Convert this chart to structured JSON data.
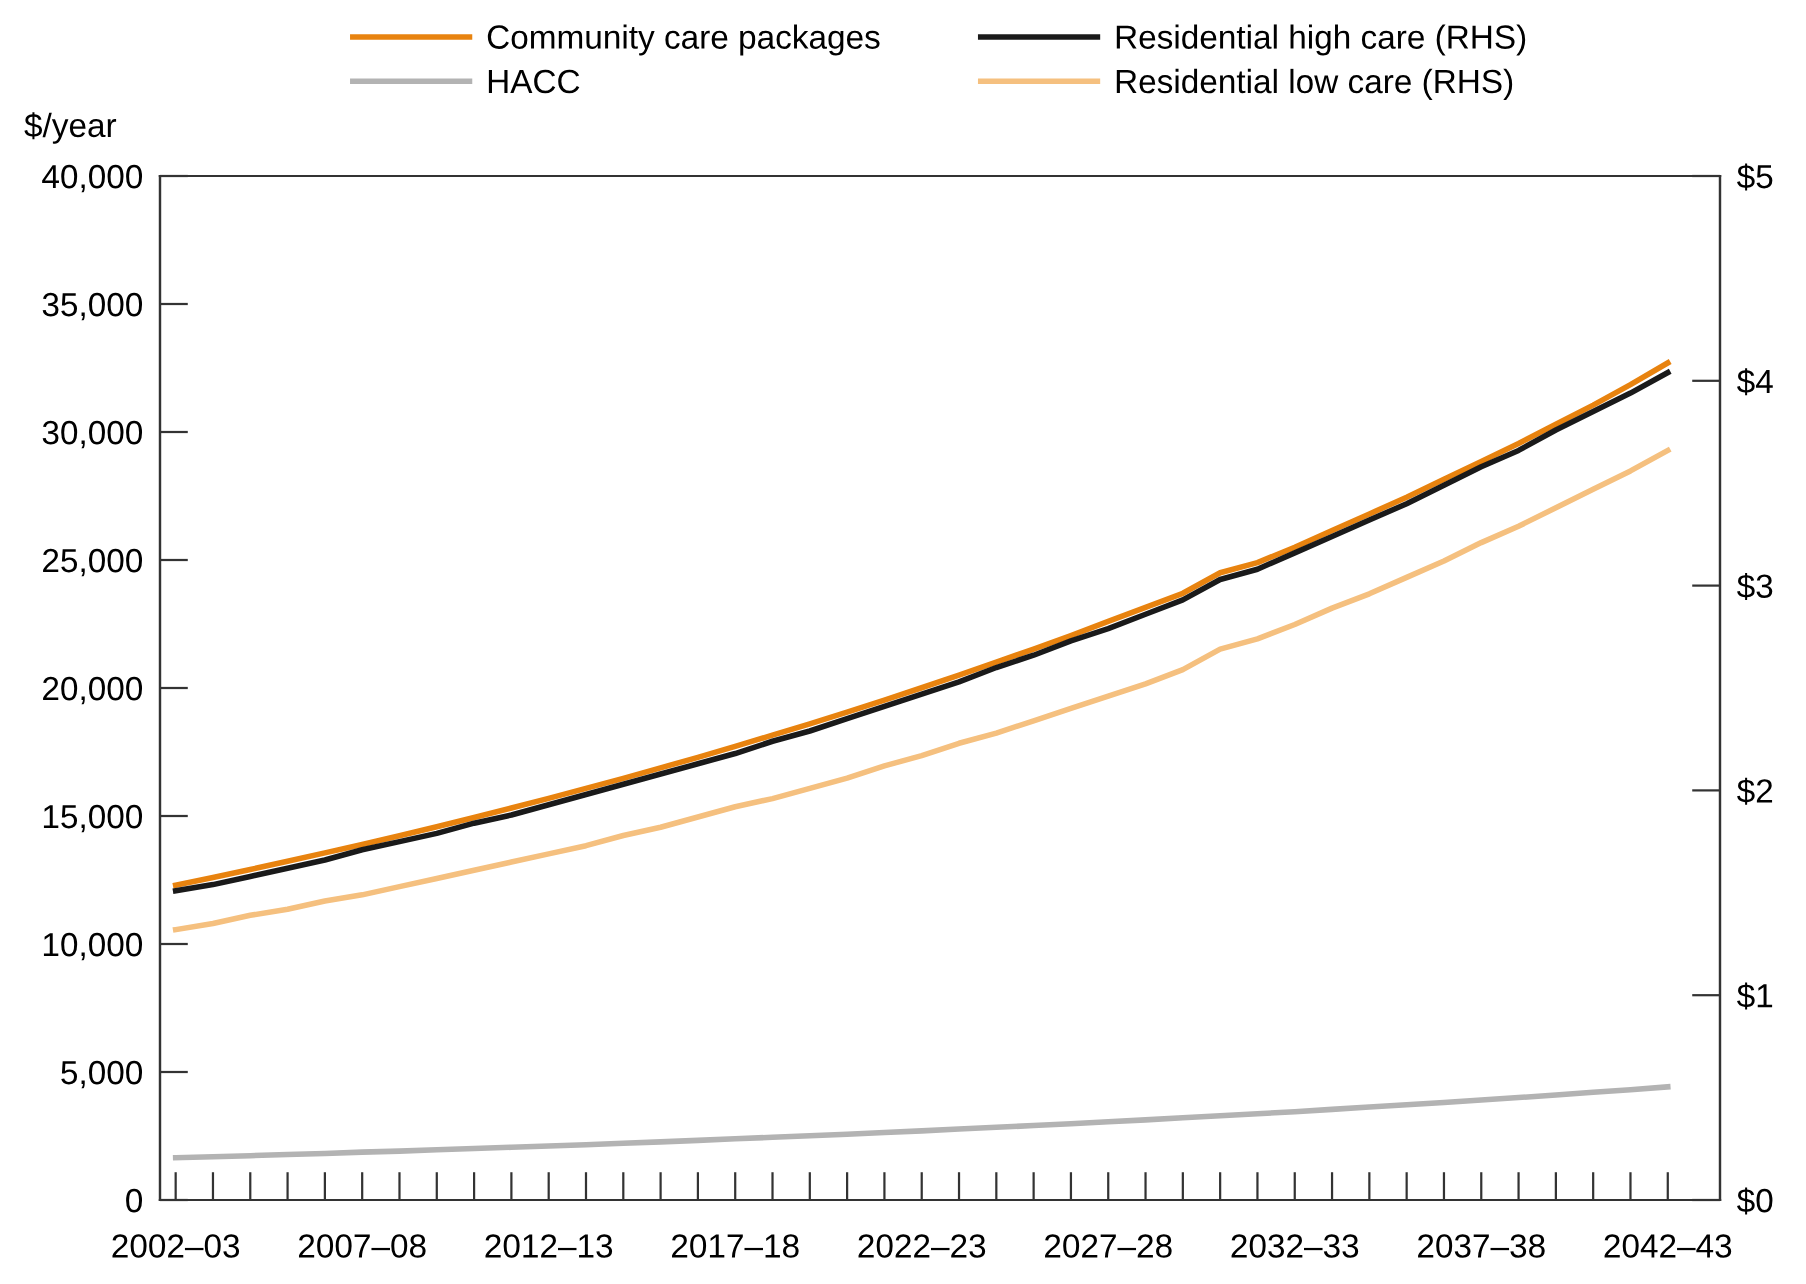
{
  "chart_data": {
    "type": "line",
    "ylabel": "$/year",
    "categories": [
      "2002–03",
      null,
      null,
      null,
      null,
      "2007–08",
      null,
      null,
      null,
      null,
      "2012–13",
      null,
      null,
      null,
      null,
      "2017–18",
      null,
      null,
      null,
      null,
      "2022–23",
      null,
      null,
      null,
      null,
      "2027–28",
      null,
      null,
      null,
      null,
      "2032–33",
      null,
      null,
      null,
      null,
      "2037–38",
      null,
      null,
      null,
      null,
      "2042–43"
    ],
    "series": [
      {
        "name": "Community care packages",
        "color": "#e8830f",
        "values": [
          12300,
          12600,
          12910,
          13230,
          13560,
          13890,
          14230,
          14580,
          14940,
          15310,
          15690,
          16080,
          16470,
          16880,
          17290,
          17720,
          18160,
          18600,
          19060,
          19530,
          20010,
          20500,
          21010,
          21520,
          22050,
          22600,
          23150,
          23700,
          24500,
          24900,
          25500,
          26150,
          26800,
          27450,
          28150,
          28850,
          29550,
          30300,
          31050,
          31850,
          32700
        ]
      },
      {
        "name": "HACC",
        "color": "#b3b3b3",
        "values": [
          1650,
          1690,
          1730,
          1780,
          1820,
          1870,
          1910,
          1960,
          2010,
          2060,
          2110,
          2160,
          2220,
          2270,
          2330,
          2390,
          2450,
          2510,
          2570,
          2640,
          2700,
          2770,
          2840,
          2910,
          2980,
          3060,
          3130,
          3210,
          3290,
          3370,
          3450,
          3540,
          3630,
          3720,
          3810,
          3910,
          4000,
          4100,
          4210,
          4310,
          4420
        ]
      },
      {
        "name": "Residential high care (RHS)",
        "color": "#1a1a1a",
        "axis": "y2",
        "values": [
          1.51,
          1.54,
          1.58,
          1.62,
          1.66,
          1.71,
          1.75,
          1.79,
          1.84,
          1.88,
          1.93,
          1.98,
          2.03,
          2.08,
          2.13,
          2.18,
          2.24,
          2.29,
          2.35,
          2.41,
          2.47,
          2.53,
          2.6,
          2.66,
          2.73,
          2.79,
          2.86,
          2.93,
          3.03,
          3.08,
          3.16,
          3.24,
          3.32,
          3.4,
          3.49,
          3.58,
          3.66,
          3.76,
          3.85,
          3.94,
          4.04
        ]
      },
      {
        "name": "Residential low care (RHS)",
        "color": "#f5c07f",
        "axis": "y2",
        "values": [
          1.32,
          1.35,
          1.39,
          1.42,
          1.46,
          1.49,
          1.53,
          1.57,
          1.61,
          1.65,
          1.69,
          1.73,
          1.78,
          1.82,
          1.87,
          1.92,
          1.96,
          2.01,
          2.06,
          2.12,
          2.17,
          2.23,
          2.28,
          2.34,
          2.4,
          2.46,
          2.52,
          2.59,
          2.69,
          2.74,
          2.81,
          2.89,
          2.96,
          3.04,
          3.12,
          3.21,
          3.29,
          3.38,
          3.47,
          3.56,
          3.66
        ]
      }
    ],
    "ylim": [
      0,
      40000
    ],
    "yticks": [
      0,
      {
        "value": 5000,
        "label": "5,000"
      },
      {
        "value": 10000,
        "label": "10,000"
      },
      {
        "value": 15000,
        "label": "15,000"
      },
      {
        "value": 20000,
        "label": "20,000"
      },
      {
        "value": 25000,
        "label": "25,000"
      },
      {
        "value": 30000,
        "label": "30,000"
      },
      {
        "value": 35000,
        "label": "35,000"
      },
      {
        "value": 40000,
        "label": "40,000"
      }
    ],
    "y2lim": [
      0,
      5
    ],
    "y2ticks": [
      {
        "value": 0,
        "label": "$0"
      },
      {
        "value": 1,
        "label": "$1"
      },
      {
        "value": 2,
        "label": "$2"
      },
      {
        "value": 3,
        "label": "$3"
      },
      {
        "value": 4,
        "label": "$4"
      },
      {
        "value": 5,
        "label": "$5"
      }
    ],
    "grid": false,
    "legend": "top",
    "marker": "none",
    "line_style": "solid"
  }
}
